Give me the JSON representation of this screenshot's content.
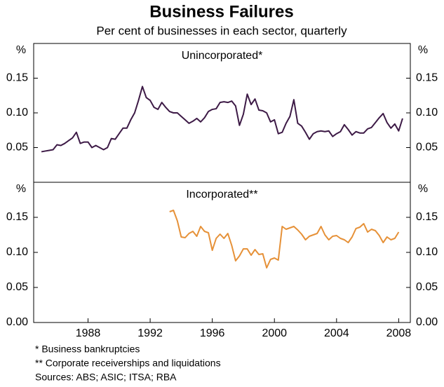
{
  "title": "Business Failures",
  "subtitle": "Per cent of businesses in each sector, quarterly",
  "notes": [
    "*  Business bankruptcies",
    "** Corporate receiverships and liquidations",
    "Sources: ABS; ASIC; ITSA; RBA"
  ],
  "chart_data": [
    {
      "type": "line",
      "title": "Unincorporated*",
      "y_label": "%",
      "xlim": [
        1984.5,
        2008.75
      ],
      "ylim": [
        0,
        0.2
      ],
      "yticks": [
        0.05,
        {
          "value": 0.1,
          "label": "0.10"
        },
        0.15
      ],
      "x": [
        1985,
        1985.25,
        1985.5,
        1985.75,
        1986,
        1986.25,
        1986.5,
        1986.75,
        1987,
        1987.25,
        1987.5,
        1987.75,
        1988,
        1988.25,
        1988.5,
        1988.75,
        1989,
        1989.25,
        1989.5,
        1989.75,
        1990,
        1990.25,
        1990.5,
        1990.75,
        1991,
        1991.25,
        1991.5,
        1991.75,
        1992,
        1992.25,
        1992.5,
        1992.75,
        1993,
        1993.25,
        1993.5,
        1993.75,
        1994,
        1994.25,
        1994.5,
        1994.75,
        1995,
        1995.25,
        1995.5,
        1995.75,
        1996,
        1996.25,
        1996.5,
        1996.75,
        1997,
        1997.25,
        1997.5,
        1997.75,
        1998,
        1998.25,
        1998.5,
        1998.75,
        1999,
        1999.25,
        1999.5,
        1999.75,
        2000,
        2000.25,
        2000.5,
        2000.75,
        2001,
        2001.25,
        2001.5,
        2001.75,
        2002,
        2002.25,
        2002.5,
        2002.75,
        2003,
        2003.25,
        2003.5,
        2003.75,
        2004,
        2004.25,
        2004.5,
        2004.75,
        2005,
        2005.25,
        2005.5,
        2005.75,
        2006,
        2006.25,
        2006.5,
        2006.75,
        2007,
        2007.25,
        2007.5,
        2007.75,
        2008,
        2008.25
      ],
      "series": [
        {
          "name": "Unincorporated*",
          "color": "#3d1a46",
          "values": [
            0.044,
            0.045,
            0.046,
            0.047,
            0.054,
            0.053,
            0.056,
            0.06,
            0.064,
            0.072,
            0.056,
            0.058,
            0.058,
            0.05,
            0.053,
            0.05,
            0.047,
            0.05,
            0.063,
            0.062,
            0.07,
            0.078,
            0.078,
            0.09,
            0.1,
            0.118,
            0.138,
            0.122,
            0.118,
            0.108,
            0.105,
            0.115,
            0.108,
            0.102,
            0.1,
            0.1,
            0.095,
            0.09,
            0.085,
            0.088,
            0.092,
            0.087,
            0.093,
            0.102,
            0.105,
            0.106,
            0.115,
            0.116,
            0.115,
            0.117,
            0.11,
            0.082,
            0.098,
            0.127,
            0.112,
            0.12,
            0.104,
            0.103,
            0.1,
            0.087,
            0.09,
            0.07,
            0.072,
            0.085,
            0.095,
            0.119,
            0.085,
            0.081,
            0.072,
            0.062,
            0.07,
            0.073,
            0.074,
            0.073,
            0.074,
            0.066,
            0.07,
            0.073,
            0.083,
            0.076,
            0.068,
            0.073,
            0.071,
            0.071,
            0.077,
            0.079,
            0.086,
            0.093,
            0.099,
            0.086,
            0.078,
            0.084,
            0.074,
            0.092
          ]
        }
      ]
    },
    {
      "type": "line",
      "title": "Incorporated**",
      "y_label": "%",
      "xlim": [
        1984.5,
        2008.75
      ],
      "ylim": [
        0,
        0.2
      ],
      "xticks": [
        1988,
        1992,
        1996,
        2000,
        2004,
        2008
      ],
      "yticks": [
        {
          "value": 0,
          "label": "0.00"
        },
        0.05,
        {
          "value": 0.1,
          "label": "0.10"
        },
        0.15
      ],
      "x": [
        1993.25,
        1993.5,
        1993.75,
        1994,
        1994.25,
        1994.5,
        1994.75,
        1995,
        1995.25,
        1995.5,
        1995.75,
        1996,
        1996.25,
        1996.5,
        1996.75,
        1997,
        1997.25,
        1997.5,
        1997.75,
        1998,
        1998.25,
        1998.5,
        1998.75,
        1999,
        1999.25,
        1999.5,
        1999.75,
        2000,
        2000.25,
        2000.5,
        2000.75,
        2001,
        2001.25,
        2001.5,
        2001.75,
        2002,
        2002.25,
        2002.5,
        2002.75,
        2003,
        2003.25,
        2003.5,
        2003.75,
        2004,
        2004.25,
        2004.5,
        2004.75,
        2005,
        2005.25,
        2005.5,
        2005.75,
        2006,
        2006.25,
        2006.5,
        2006.75,
        2007,
        2007.25,
        2007.5,
        2007.75,
        2008
      ],
      "series": [
        {
          "name": "Incorporated**",
          "color": "#e69138",
          "values": [
            0.158,
            0.16,
            0.145,
            0.122,
            0.121,
            0.127,
            0.13,
            0.123,
            0.137,
            0.13,
            0.128,
            0.103,
            0.12,
            0.126,
            0.12,
            0.127,
            0.11,
            0.088,
            0.095,
            0.105,
            0.105,
            0.096,
            0.104,
            0.097,
            0.098,
            0.078,
            0.09,
            0.092,
            0.089,
            0.137,
            0.133,
            0.135,
            0.137,
            0.132,
            0.126,
            0.118,
            0.123,
            0.125,
            0.127,
            0.137,
            0.125,
            0.118,
            0.123,
            0.124,
            0.12,
            0.118,
            0.114,
            0.122,
            0.134,
            0.136,
            0.141,
            0.129,
            0.133,
            0.131,
            0.124,
            0.114,
            0.122,
            0.118,
            0.12,
            0.129
          ]
        }
      ]
    }
  ]
}
